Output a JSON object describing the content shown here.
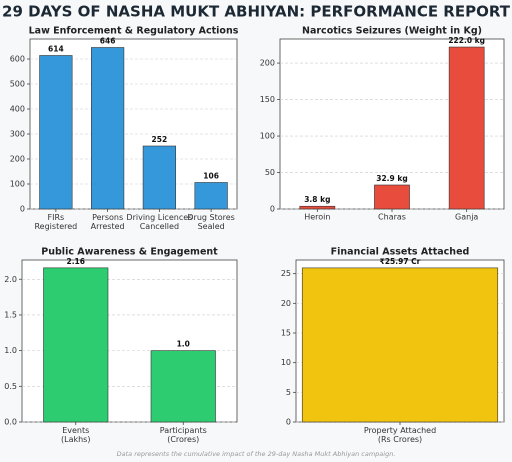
{
  "title": "29 DAYS OF NASHA MUKT ABHIYAN: PERFORMANCE REPORT",
  "footnote": "Data represents the cumulative impact of the 29-day Nasha Mukt Abhiyan campaign.",
  "chart_data": [
    {
      "type": "bar",
      "title": "Law Enforcement & Regulatory Actions",
      "categories": [
        "FIRs\nRegistered",
        "Persons\nArrested",
        "Driving Licences\nCancelled",
        "Drug Stores\nSealed"
      ],
      "values": [
        614,
        646,
        252,
        106
      ],
      "color": "#3498db",
      "ylim": [
        0,
        680
      ],
      "yticks": [
        0,
        100,
        200,
        300,
        400,
        500,
        600
      ],
      "grid": true
    },
    {
      "type": "bar",
      "title": "Narcotics Seizures (Weight in Kg)",
      "categories": [
        "Heroin",
        "Charas",
        "Ganja"
      ],
      "values": [
        3.8,
        32.9,
        222.0
      ],
      "value_labels": [
        "3.8 kg",
        "32.9 kg",
        "222.0 kg"
      ],
      "color": "#e74c3c",
      "ylim": [
        0,
        233
      ],
      "yticks": [
        0,
        50,
        100,
        150,
        200
      ],
      "grid": true
    },
    {
      "type": "bar",
      "title": "Public Awareness & Engagement",
      "categories": [
        "Events\n(Lakhs)",
        "Participants\n(Crores)"
      ],
      "values": [
        2.16,
        1.0
      ],
      "value_labels": [
        "2.16",
        "1.0"
      ],
      "color": "#2ecc71",
      "ylim": [
        0,
        2.27
      ],
      "yticks": [
        {
          "value": 0,
          "label": "0.0"
        },
        {
          "value": 0.5,
          "label": "0.5"
        },
        {
          "value": 1,
          "label": "1.0"
        },
        {
          "value": 1.5,
          "label": "1.5"
        },
        {
          "value": 2,
          "label": "2.0"
        }
      ],
      "grid": true
    },
    {
      "type": "bar",
      "title": "Financial Assets Attached",
      "categories": [
        "Property Attached\n(Rs Crores)"
      ],
      "values": [
        25.97
      ],
      "value_labels": [
        "₹25.97 Cr"
      ],
      "color": "#f1c40f",
      "ylim": [
        0,
        27.3
      ],
      "yticks": [
        0,
        5,
        10,
        15,
        20,
        25
      ],
      "grid": true
    }
  ]
}
